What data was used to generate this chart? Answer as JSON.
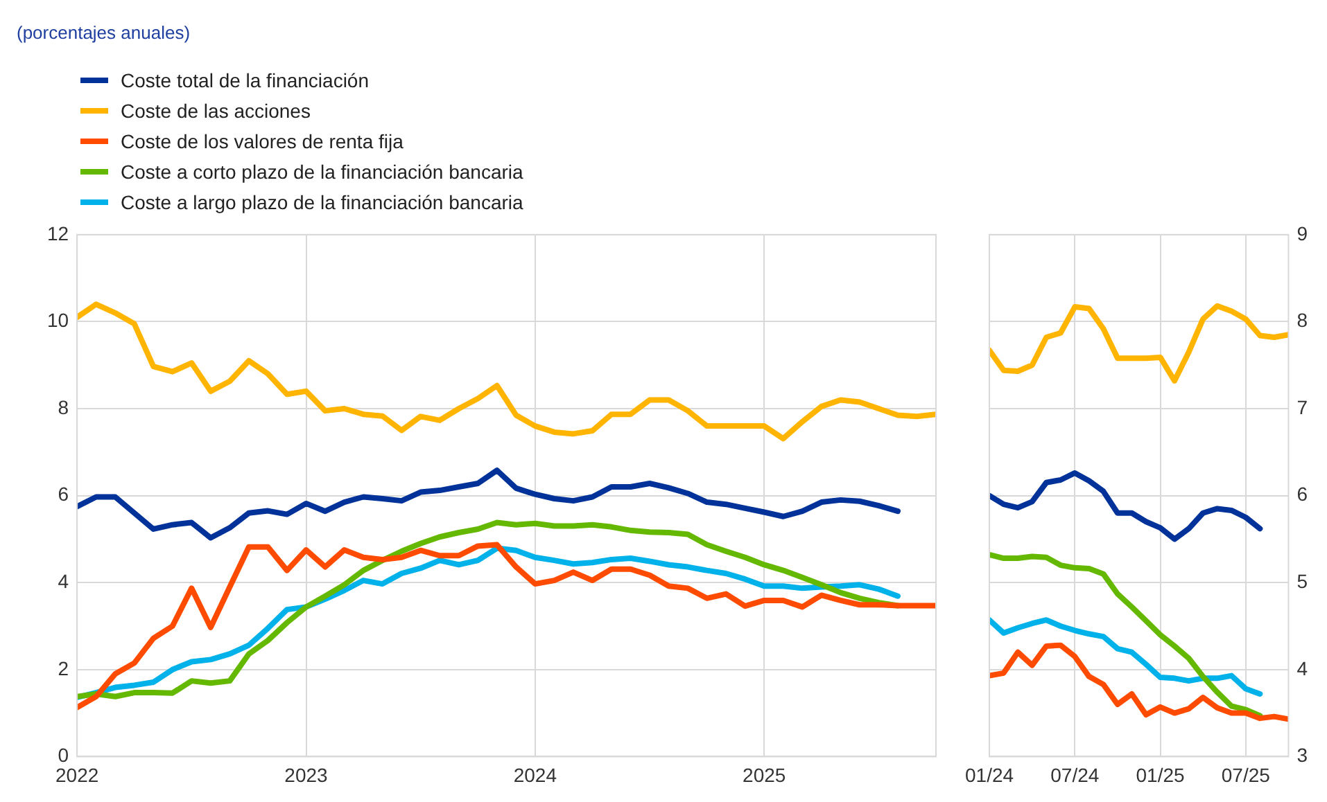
{
  "chart_data": [
    {
      "type": "line",
      "subtitle": "(porcentajes anuales)",
      "legend": "top left",
      "grid": true,
      "x": [
        "2022-01",
        "2022-02",
        "2022-03",
        "2022-04",
        "2022-05",
        "2022-06",
        "2022-07",
        "2022-08",
        "2022-09",
        "2022-10",
        "2022-11",
        "2022-12",
        "2023-01",
        "2023-02",
        "2023-03",
        "2023-04",
        "2023-05",
        "2023-06",
        "2023-07",
        "2023-08",
        "2023-09",
        "2023-10",
        "2023-11",
        "2023-12",
        "2024-01",
        "2024-02",
        "2024-03",
        "2024-04",
        "2024-05",
        "2024-06",
        "2024-07",
        "2024-08",
        "2024-09",
        "2024-10",
        "2024-11",
        "2024-12",
        "2025-01",
        "2025-02",
        "2025-03",
        "2025-04",
        "2025-05",
        "2025-06",
        "2025-07",
        "2025-08",
        "2025-09",
        "2025-10"
      ],
      "xlim": [
        "2022-01",
        "2025-10"
      ],
      "xticks": [
        "2022",
        "2023",
        "2024",
        "2025"
      ],
      "ylim": [
        0,
        12
      ],
      "yticks": [
        0,
        2,
        4,
        6,
        8,
        10,
        12
      ],
      "series": [
        {
          "name": "Coste total de la financiación",
          "color": "#003299",
          "values": [
            5.75,
            5.97,
            5.97,
            5.6,
            5.23,
            5.33,
            5.38,
            5.03,
            5.26,
            5.6,
            5.65,
            5.57,
            5.82,
            5.64,
            5.85,
            5.97,
            5.93,
            5.88,
            6.08,
            6.12,
            6.2,
            6.28,
            6.58,
            6.17,
            6.03,
            5.93,
            5.88,
            5.97,
            6.2,
            6.2,
            6.28,
            6.18,
            6.05,
            5.85,
            5.8,
            5.71,
            5.62,
            5.52,
            5.64,
            5.85,
            5.9,
            5.87,
            5.77,
            5.64,
            null,
            null
          ]
        },
        {
          "name": "Coste de las acciones",
          "color": "#ffb400",
          "values": [
            10.1,
            10.4,
            10.2,
            9.95,
            8.97,
            8.85,
            9.05,
            8.4,
            8.63,
            9.1,
            8.8,
            8.33,
            8.4,
            7.95,
            8.0,
            7.87,
            7.83,
            7.5,
            7.82,
            7.73,
            8.0,
            8.23,
            8.53,
            7.85,
            7.6,
            7.46,
            7.42,
            7.49,
            7.87,
            7.87,
            8.2,
            8.2,
            7.95,
            7.6,
            7.6,
            7.6,
            7.6,
            7.31,
            7.7,
            8.05,
            8.2,
            8.15,
            8.0,
            7.85,
            7.82,
            7.87
          ]
        },
        {
          "name": "Coste de los valores de renta fija",
          "color": "#ff4b00",
          "values": [
            1.13,
            1.38,
            1.9,
            2.15,
            2.72,
            3.0,
            3.87,
            2.97,
            3.9,
            4.82,
            4.82,
            4.28,
            4.75,
            4.36,
            4.75,
            4.58,
            4.53,
            4.58,
            4.74,
            4.62,
            4.62,
            4.84,
            4.87,
            4.36,
            3.97,
            4.05,
            4.24,
            4.05,
            4.31,
            4.31,
            4.17,
            3.92,
            3.87,
            3.64,
            3.74,
            3.46,
            3.59,
            3.59,
            3.44,
            3.71,
            3.59,
            3.49,
            3.49,
            3.47,
            3.47,
            3.47
          ]
        },
        {
          "name": "Coste a corto plazo de la financiación bancaria",
          "color": "#65b800",
          "values": [
            1.38,
            1.44,
            1.38,
            1.47,
            1.47,
            1.46,
            1.74,
            1.69,
            1.74,
            2.36,
            2.67,
            3.08,
            3.44,
            3.69,
            3.95,
            4.28,
            4.51,
            4.72,
            4.9,
            5.05,
            5.15,
            5.23,
            5.38,
            5.33,
            5.36,
            5.3,
            5.3,
            5.33,
            5.28,
            5.2,
            5.16,
            5.15,
            5.11,
            4.87,
            4.72,
            4.58,
            4.41,
            4.28,
            4.12,
            3.95,
            3.77,
            3.64,
            3.54,
            3.47,
            null,
            null
          ]
        },
        {
          "name": "Coste a largo plazo de la financiación bancaria",
          "color": "#00b1ea",
          "values": [
            1.36,
            1.47,
            1.59,
            1.64,
            1.71,
            2.0,
            2.18,
            2.23,
            2.36,
            2.56,
            2.95,
            3.38,
            3.44,
            3.62,
            3.82,
            4.05,
            3.97,
            4.21,
            4.33,
            4.51,
            4.41,
            4.51,
            4.79,
            4.74,
            4.58,
            4.51,
            4.43,
            4.46,
            4.53,
            4.56,
            4.49,
            4.41,
            4.36,
            4.28,
            4.21,
            4.08,
            3.92,
            3.92,
            3.87,
            3.9,
            3.92,
            3.95,
            3.85,
            3.69,
            null,
            null
          ]
        }
      ]
    },
    {
      "type": "line",
      "grid": true,
      "x": [
        "2024-01",
        "2024-02",
        "2024-03",
        "2024-04",
        "2024-05",
        "2024-06",
        "2024-07",
        "2024-08",
        "2024-09",
        "2024-10",
        "2024-11",
        "2024-12",
        "2025-01",
        "2025-02",
        "2025-03",
        "2025-04",
        "2025-05",
        "2025-06",
        "2025-07",
        "2025-08",
        "2025-09",
        "2025-10"
      ],
      "xlim": [
        "2024-01",
        "2025-10"
      ],
      "xticks": [
        {
          "value": "2024-01",
          "label": "01/24"
        },
        {
          "value": "2024-07",
          "label": "07/24"
        },
        {
          "value": "2025-01",
          "label": "01/25"
        },
        {
          "value": "2025-07",
          "label": "07/25"
        }
      ],
      "y2lim": [
        3,
        9
      ],
      "y2ticks": [
        3,
        4,
        5,
        6,
        7,
        8,
        9
      ],
      "series": [
        {
          "color": "#003299",
          "axis": "y2",
          "values": [
            6.0,
            5.9,
            5.86,
            5.93,
            6.15,
            6.18,
            6.26,
            6.17,
            6.05,
            5.8,
            5.8,
            5.7,
            5.63,
            5.5,
            5.62,
            5.8,
            5.85,
            5.83,
            5.75,
            5.62,
            null,
            null
          ]
        },
        {
          "color": "#ffb400",
          "axis": "y2",
          "values": [
            7.67,
            7.44,
            7.43,
            7.5,
            7.82,
            7.87,
            8.17,
            8.15,
            7.92,
            7.58,
            7.58,
            7.58,
            7.59,
            7.32,
            7.65,
            8.03,
            8.18,
            8.12,
            8.03,
            7.84,
            7.82,
            7.85
          ]
        },
        {
          "color": "#ff4b00",
          "axis": "y2",
          "values": [
            3.93,
            3.96,
            4.2,
            4.05,
            4.27,
            4.28,
            4.15,
            3.92,
            3.83,
            3.6,
            3.72,
            3.48,
            3.57,
            3.5,
            3.55,
            3.68,
            3.56,
            3.5,
            3.5,
            3.44,
            3.46,
            3.43
          ]
        },
        {
          "color": "#65b800",
          "axis": "y2",
          "values": [
            5.32,
            5.28,
            5.28,
            5.3,
            5.29,
            5.2,
            5.17,
            5.16,
            5.1,
            4.87,
            4.72,
            4.56,
            4.4,
            4.27,
            4.13,
            3.92,
            3.74,
            3.58,
            3.54,
            3.47,
            null,
            null
          ]
        },
        {
          "color": "#00b1ea",
          "axis": "y2",
          "values": [
            4.57,
            4.42,
            4.48,
            4.53,
            4.57,
            4.5,
            4.45,
            4.41,
            4.38,
            4.24,
            4.2,
            4.06,
            3.91,
            3.9,
            3.87,
            3.9,
            3.9,
            3.93,
            3.78,
            3.72,
            null,
            null
          ]
        }
      ]
    }
  ]
}
